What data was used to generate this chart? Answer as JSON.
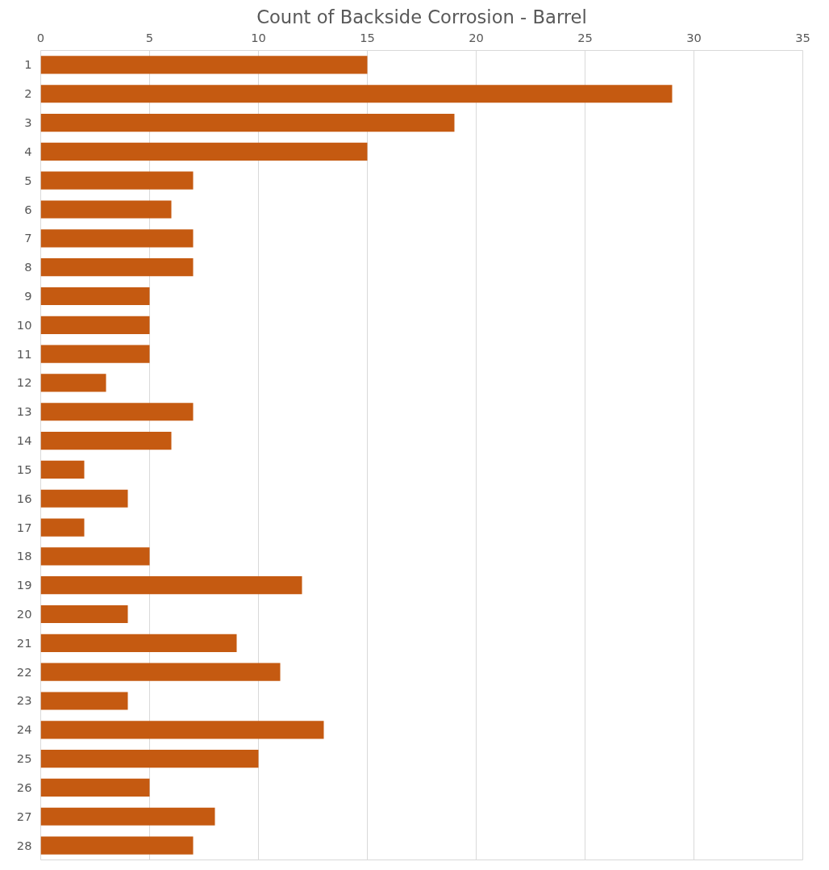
{
  "chart_data": {
    "type": "bar",
    "orientation": "horizontal",
    "title": "Count of Backside Corrosion - Barrel",
    "categories": [
      "1",
      "2",
      "3",
      "4",
      "5",
      "6",
      "7",
      "8",
      "9",
      "10",
      "11",
      "12",
      "13",
      "14",
      "15",
      "16",
      "17",
      "18",
      "19",
      "20",
      "21",
      "22",
      "23",
      "24",
      "25",
      "26",
      "27",
      "28"
    ],
    "values": [
      15,
      29,
      19,
      15,
      7,
      6,
      7,
      7,
      5,
      5,
      5,
      3,
      7,
      6,
      2,
      4,
      2,
      5,
      12,
      4,
      9,
      11,
      4,
      13,
      10,
      5,
      8,
      7
    ],
    "color": "#c55a11",
    "xlim": [
      0,
      35
    ],
    "xticks": [
      0,
      5,
      10,
      15,
      20,
      25,
      30,
      35
    ],
    "grid": "x"
  }
}
